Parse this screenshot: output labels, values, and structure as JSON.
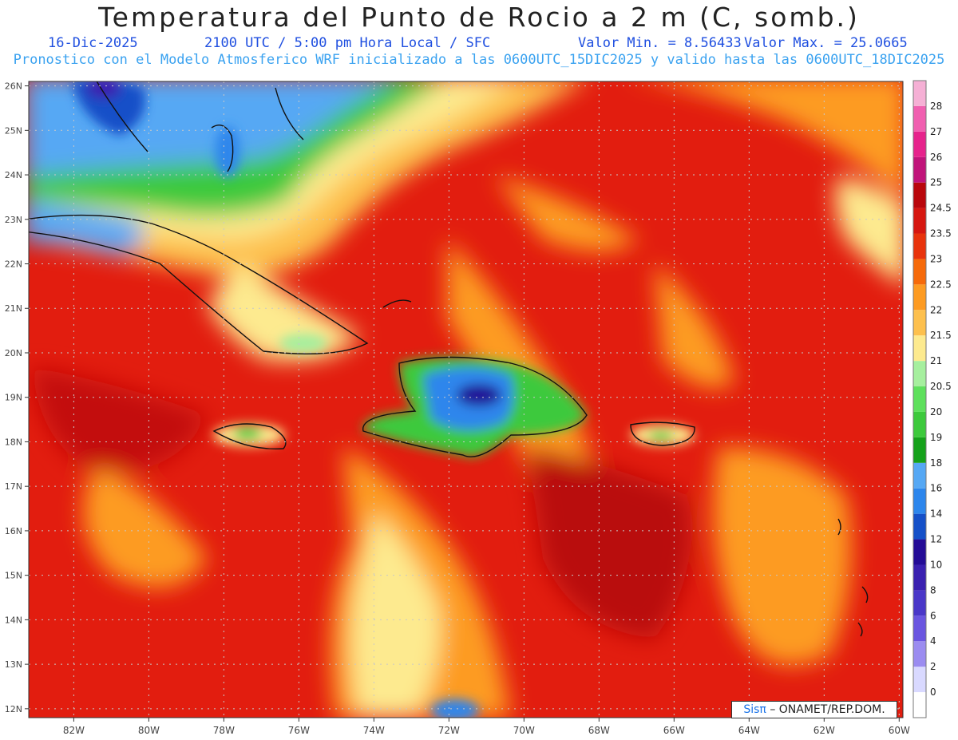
{
  "header": {
    "title": "Temperatura del Punto de Rocio a 2 m (C, somb.)",
    "date": "16-Dic-2025",
    "time": "2100 UTC / 5:00 pm Hora Local / SFC",
    "min": "Valor Min. = 8.56433",
    "max": "Valor Max. = 25.0665",
    "info": "Pronostico con el Modelo Atmosferico WRF inicializado a las 0600UTC_15DIC2025 y valido hasta las  0600UTC_18DIC2025"
  },
  "map": {
    "lon_range": [
      -83.2,
      -59.9
    ],
    "lat_range": [
      11.8,
      26.1
    ],
    "lon_ticks": [
      "82W",
      "80W",
      "78W",
      "76W",
      "74W",
      "72W",
      "70W",
      "68W",
      "66W",
      "64W",
      "62W",
      "60W"
    ],
    "lat_ticks": [
      "12N",
      "13N",
      "14N",
      "15N",
      "16N",
      "17N",
      "18N",
      "19N",
      "20N",
      "21N",
      "22N",
      "23N",
      "24N",
      "25N",
      "26N"
    ]
  },
  "colorbar": {
    "labels": [
      "0",
      "2",
      "4",
      "6",
      "8",
      "10",
      "12",
      "14",
      "16",
      "18",
      "19",
      "20",
      "20.5",
      "21",
      "21.5",
      "22",
      "22.5",
      "23",
      "23.5",
      "24.5",
      "25",
      "26",
      "27",
      "28"
    ],
    "colors": [
      "#ffffff",
      "#d9d9ff",
      "#9b8cf0",
      "#6a55e0",
      "#4a37c8",
      "#3a20b0",
      "#240c96",
      "#1550c8",
      "#2d86ec",
      "#56a8f4",
      "#15a11a",
      "#3dc93c",
      "#5ee05c",
      "#a6ef9e",
      "#fdea8f",
      "#fdc04e",
      "#fd9b22",
      "#f66a0a",
      "#e8330c",
      "#d61710",
      "#b9070c",
      "#c0147a",
      "#e6238c",
      "#f05fb0",
      "#f5b0d5"
    ]
  },
  "credit": {
    "logo": "Sisπ",
    "text": "– ONAMET/REP.DOM."
  }
}
